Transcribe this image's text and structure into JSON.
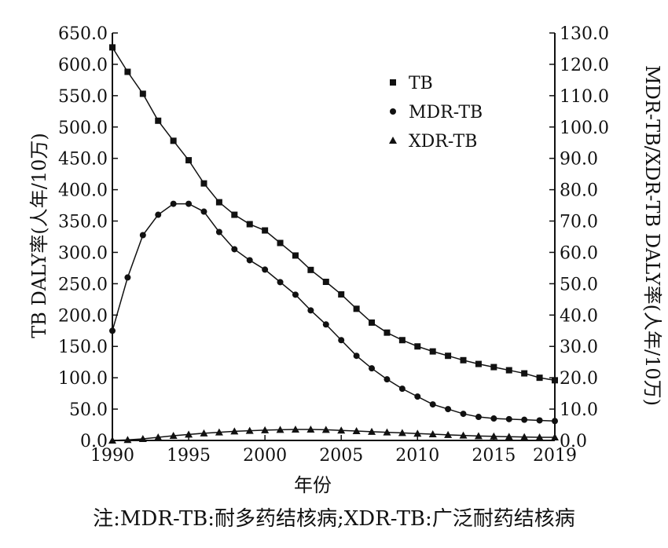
{
  "chart_data": {
    "type": "line",
    "xlabel": "年份",
    "ylabel_left": "TB DALY率(人年/10万)",
    "ylabel_right": "MDR-TB/XDR-TB DALY率(人年/10万)",
    "x_ticks": [
      1990,
      1995,
      2000,
      2005,
      2010,
      2015,
      2019
    ],
    "xlim": [
      1990,
      2019
    ],
    "ylim_left": [
      0,
      650
    ],
    "ylim_right": [
      0,
      130
    ],
    "yticks_left": [
      "0.0",
      "50.0",
      "100.0",
      "150.0",
      "200.0",
      "250.0",
      "300.0",
      "350.0",
      "400.0",
      "450.0",
      "500.0",
      "550.0",
      "600.0",
      "650.0"
    ],
    "yticks_right": [
      "0.0",
      "10.0",
      "20.0",
      "30.0",
      "40.0",
      "50.0",
      "60.0",
      "70.0",
      "80.0",
      "90.0",
      "100.0",
      "110.0",
      "120.0",
      "130.0"
    ],
    "x": [
      1990,
      1991,
      1992,
      1993,
      1994,
      1995,
      1996,
      1997,
      1998,
      1999,
      2000,
      2001,
      2002,
      2003,
      2004,
      2005,
      2006,
      2007,
      2008,
      2009,
      2010,
      2011,
      2012,
      2013,
      2014,
      2015,
      2016,
      2017,
      2018,
      2019
    ],
    "series": [
      {
        "name": "TB",
        "axis": "left",
        "marker": "square",
        "values": [
          627,
          588,
          553,
          510,
          478,
          447,
          410,
          380,
          360,
          345,
          335,
          315,
          295,
          272,
          253,
          233,
          210,
          188,
          172,
          160,
          150,
          142,
          135,
          128,
          122,
          117,
          112,
          107,
          100,
          96
        ]
      },
      {
        "name": "MDR-TB",
        "axis": "right",
        "marker": "circle",
        "values": [
          35.0,
          52.0,
          65.5,
          72.0,
          75.5,
          75.5,
          73.0,
          66.5,
          61.0,
          57.5,
          54.5,
          50.5,
          46.5,
          41.5,
          37.0,
          32.0,
          27.0,
          23.0,
          19.5,
          16.5,
          14.0,
          11.5,
          10.0,
          8.5,
          7.5,
          7.0,
          6.8,
          6.6,
          6.4,
          6.2
        ]
      },
      {
        "name": "XDR-TB",
        "axis": "right",
        "marker": "triangle",
        "values": [
          0.0,
          0.2,
          0.5,
          1.0,
          1.5,
          1.9,
          2.3,
          2.6,
          2.9,
          3.1,
          3.3,
          3.4,
          3.5,
          3.5,
          3.4,
          3.2,
          3.0,
          2.8,
          2.6,
          2.4,
          2.2,
          2.0,
          1.8,
          1.6,
          1.4,
          1.3,
          1.2,
          1.1,
          1.0,
          1.0
        ]
      }
    ],
    "legend": [
      "TB",
      "MDR-TB",
      "XDR-TB"
    ],
    "legend_position": "top-right"
  },
  "note": "注:MDR-TB:耐多药结核病;XDR-TB:广泛耐药结核病"
}
